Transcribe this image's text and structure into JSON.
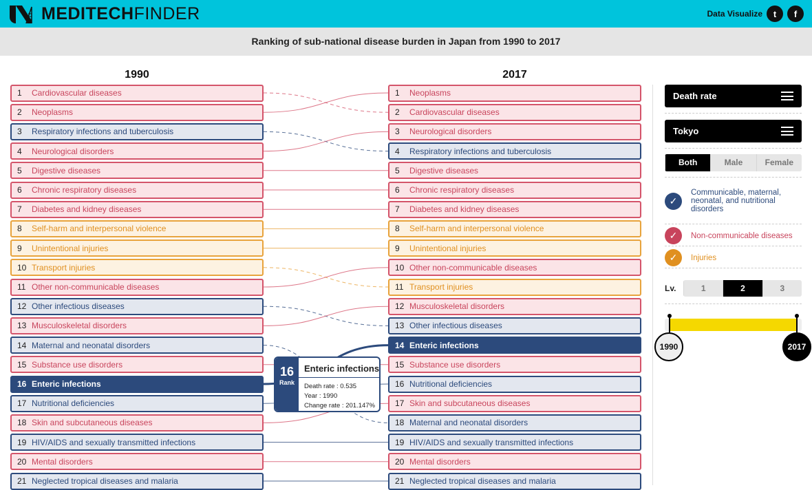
{
  "header": {
    "brand_bold": "MEDITECH",
    "brand_light": "FINDER",
    "link": "Data Visualize",
    "social": [
      "twitter-icon",
      "facebook-icon"
    ]
  },
  "chart_data": {
    "type": "table",
    "title": "Ranking of sub-national disease burden in Japan from 1990 to 2017",
    "colors": {
      "n": "#d4546a",
      "c": "#2c4a7c",
      "i": "#e8a33c"
    },
    "left_year": "1990",
    "right_year": "2017",
    "y1990": [
      {
        "rank": "1",
        "name": "Cardiovascular diseases",
        "cat": "n",
        "to": 2
      },
      {
        "rank": "2",
        "name": "Neoplasms",
        "cat": "n",
        "to": 1
      },
      {
        "rank": "3",
        "name": "Respiratory infections and tuberculosis",
        "cat": "c",
        "to": 4
      },
      {
        "rank": "4",
        "name": "Neurological disorders",
        "cat": "n",
        "to": 3
      },
      {
        "rank": "5",
        "name": "Digestive diseases",
        "cat": "n",
        "to": 5
      },
      {
        "rank": "6",
        "name": "Chronic respiratory diseases",
        "cat": "n",
        "to": 6
      },
      {
        "rank": "7",
        "name": "Diabetes and kidney diseases",
        "cat": "n",
        "to": 7
      },
      {
        "rank": "8",
        "name": "Self-harm and interpersonal violence",
        "cat": "i",
        "to": 8
      },
      {
        "rank": "9",
        "name": "Unintentional injuries",
        "cat": "i",
        "to": 9
      },
      {
        "rank": "10",
        "name": "Transport injuries",
        "cat": "i",
        "to": 11
      },
      {
        "rank": "11",
        "name": "Other non-communicable diseases",
        "cat": "n",
        "to": 10
      },
      {
        "rank": "12",
        "name": "Other infectious diseases",
        "cat": "c",
        "to": 13
      },
      {
        "rank": "13",
        "name": "Musculoskeletal disorders",
        "cat": "n",
        "to": 12
      },
      {
        "rank": "14",
        "name": "Maternal and neonatal disorders",
        "cat": "c",
        "to": 18
      },
      {
        "rank": "15",
        "name": "Substance use disorders",
        "cat": "n",
        "to": 15
      },
      {
        "rank": "16",
        "name": "Enteric infections",
        "cat": "c",
        "to": 14,
        "hl": true
      },
      {
        "rank": "17",
        "name": "Nutritional deficiencies",
        "cat": "c",
        "to": 16
      },
      {
        "rank": "18",
        "name": "Skin and subcutaneous diseases",
        "cat": "n",
        "to": 17
      },
      {
        "rank": "19",
        "name": "HIV/AIDS and sexually transmitted infections",
        "cat": "c",
        "to": 19
      },
      {
        "rank": "20",
        "name": "Mental disorders",
        "cat": "n",
        "to": 20
      },
      {
        "rank": "21",
        "name": "Neglected tropical diseases and malaria",
        "cat": "c",
        "to": 21
      }
    ],
    "y2017": [
      {
        "rank": "1",
        "name": "Neoplasms",
        "cat": "n"
      },
      {
        "rank": "2",
        "name": "Cardiovascular diseases",
        "cat": "n"
      },
      {
        "rank": "3",
        "name": "Neurological disorders",
        "cat": "n"
      },
      {
        "rank": "4",
        "name": "Respiratory infections and tuberculosis",
        "cat": "c"
      },
      {
        "rank": "5",
        "name": "Digestive diseases",
        "cat": "n"
      },
      {
        "rank": "6",
        "name": "Chronic respiratory diseases",
        "cat": "n"
      },
      {
        "rank": "7",
        "name": "Diabetes and kidney diseases",
        "cat": "n"
      },
      {
        "rank": "8",
        "name": "Self-harm and interpersonal violence",
        "cat": "i"
      },
      {
        "rank": "9",
        "name": "Unintentional injuries",
        "cat": "i"
      },
      {
        "rank": "10",
        "name": "Other non-communicable diseases",
        "cat": "n"
      },
      {
        "rank": "11",
        "name": "Transport injuries",
        "cat": "i"
      },
      {
        "rank": "12",
        "name": "Musculoskeletal disorders",
        "cat": "n"
      },
      {
        "rank": "13",
        "name": "Other infectious diseases",
        "cat": "c"
      },
      {
        "rank": "14",
        "name": "Enteric infections",
        "cat": "c",
        "hl": true
      },
      {
        "rank": "15",
        "name": "Substance use disorders",
        "cat": "n"
      },
      {
        "rank": "16",
        "name": "Nutritional deficiencies",
        "cat": "c"
      },
      {
        "rank": "17",
        "name": "Skin and subcutaneous diseases",
        "cat": "n"
      },
      {
        "rank": "18",
        "name": "Maternal and neonatal disorders",
        "cat": "c"
      },
      {
        "rank": "19",
        "name": "HIV/AIDS and sexually transmitted infections",
        "cat": "c"
      },
      {
        "rank": "20",
        "name": "Mental disorders",
        "cat": "n"
      },
      {
        "rank": "21",
        "name": "Neglected tropical diseases and malaria",
        "cat": "c"
      }
    ]
  },
  "tooltip": {
    "rank": "16",
    "rank_label": "Rank",
    "title": "Enteric infections",
    "lines": [
      "Death rate : 0.535",
      "Year : 1990",
      "Change rate : 201.147%"
    ]
  },
  "controls": {
    "measure": "Death rate",
    "location": "Tokyo",
    "sex": [
      "Both",
      "Male",
      "Female"
    ],
    "sex_selected": 0,
    "legend": [
      {
        "label": "Communicable, maternal, neonatal, and nutritional disorders",
        "color": "#2c4a7c"
      },
      {
        "label": "Non-communicable diseases",
        "color": "#c8445c"
      },
      {
        "label": "Injuries",
        "color": "#e09020"
      }
    ],
    "level_label": "Lv.",
    "levels": [
      "1",
      "2",
      "3"
    ],
    "level_selected": 1,
    "timeline": {
      "start": "1990",
      "end": "2017"
    }
  }
}
